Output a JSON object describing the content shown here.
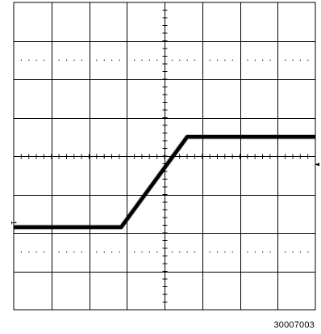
{
  "chart_data": {
    "type": "line",
    "title": "",
    "xlabel": "",
    "ylabel": "",
    "divisions": {
      "x": 8,
      "y": 8
    },
    "xlim": [
      0,
      8
    ],
    "ylim": [
      0,
      8
    ],
    "grid": true,
    "series": [
      {
        "name": "",
        "x": [
          0,
          2.85,
          4.6,
          8
        ],
        "y": [
          2.15,
          2.15,
          4.5,
          4.5
        ]
      }
    ],
    "channel_marker": "1",
    "trigger_marker": "◄"
  },
  "figure_id": "30007003",
  "colors": {
    "background": "#ffffff",
    "grid": "#000000",
    "trace": "#000000"
  }
}
